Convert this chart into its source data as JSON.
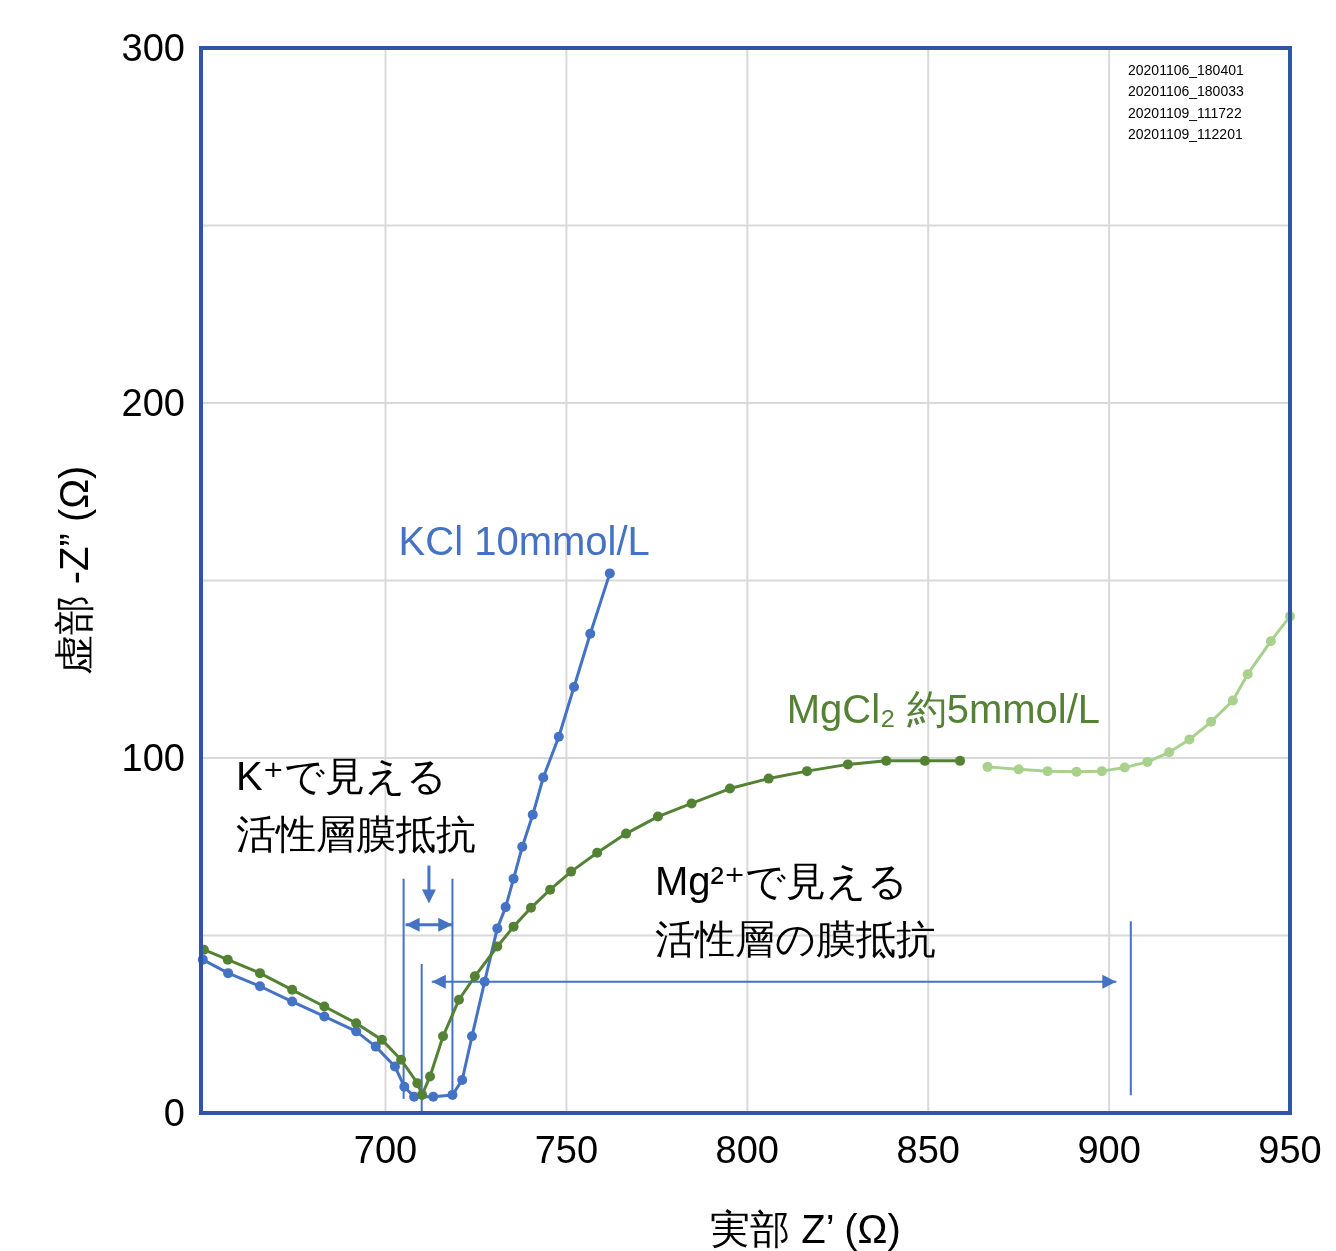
{
  "chart_data": {
    "type": "line",
    "xlabel": "実部  Z’ (Ω)",
    "ylabel": "虚部  -Z” (Ω)",
    "xlim": [
      649,
      950
    ],
    "ylim": [
      0,
      300
    ],
    "xticks": [
      700,
      750,
      800,
      850,
      900,
      950
    ],
    "yticks": [
      0,
      {
        "value": 50,
        "label": null
      },
      100,
      {
        "value": 150,
        "label": null
      },
      200,
      {
        "value": 250,
        "label": null
      },
      300
    ],
    "grid": true,
    "marker": "circle",
    "annotations": [
      "K⁺で見える",
      {
        "text": "活性層膜抵抗",
        "x": 718.5,
        "y": 5.1
      },
      "Mg²⁺で見える",
      "活性層の膜抵抗",
      "20201106_180401",
      "20201106_180033",
      "20201109_111722",
      "20201109_112201"
    ],
    "series": [
      {
        "name": "KCl 10mmol/L",
        "color": "#4472c4",
        "x": [
          649.5,
          656.5,
          665.3,
          674.2,
          683.1,
          691.9,
          697.3,
          702.6,
          705.2,
          707.9,
          713.2,
          718.5,
          721.2,
          723.9,
          727.4,
          730.9,
          733.2,
          735.4,
          737.8,
          740.7,
          743.6,
          747.9,
          752.1,
          756.6,
          762
        ],
        "values": [
          43.2,
          39.4,
          35.7,
          31.4,
          27.2,
          23,
          18.7,
          13.1,
          7.4,
          4.6,
          4.6,
          5.1,
          9.3,
          21.6,
          37,
          52,
          58,
          66,
          75,
          84,
          94.5,
          106,
          120,
          135,
          152
        ]
      },
      {
        "name": "MgCl₂  約5mmol/L",
        "color": "#548235",
        "x": [
          649.8,
          656.4,
          665.3,
          674.2,
          683.1,
          691.9,
          699,
          704.3,
          708.8,
          710.1,
          712.3,
          715.9,
          720.3,
          724.7,
          730.9,
          735.4,
          740.2,
          745.5,
          751.3,
          758.5,
          766.5,
          775.3,
          784.6,
          795.2,
          805.9,
          816.5,
          827.8,
          838.4,
          849.1,
          858.8
        ],
        "values": [
          46,
          43.2,
          39.4,
          34.7,
          30,
          25.3,
          20.6,
          15,
          8.4,
          5.1,
          10.3,
          21.6,
          31.9,
          38.5,
          46.9,
          52.5,
          57.8,
          62.9,
          68,
          73.3,
          78.7,
          83.5,
          87.2,
          91.4,
          94.2,
          96.3,
          98.2,
          99.2,
          99.2,
          99.2
        ]
      },
      {
        "color": "#a9d18e",
        "x": [
          866.4,
          875,
          883,
          891,
          898,
          904.3,
          910.6,
          916.6,
          922.2,
          928.2,
          934.2,
          938.3,
          944.7,
          950
        ],
        "values": [
          97.5,
          96.8,
          96.3,
          96.1,
          96.3,
          97.3,
          98.9,
          101.6,
          105.2,
          110.2,
          116.2,
          123.6,
          132.9,
          139.9
        ]
      }
    ]
  }
}
